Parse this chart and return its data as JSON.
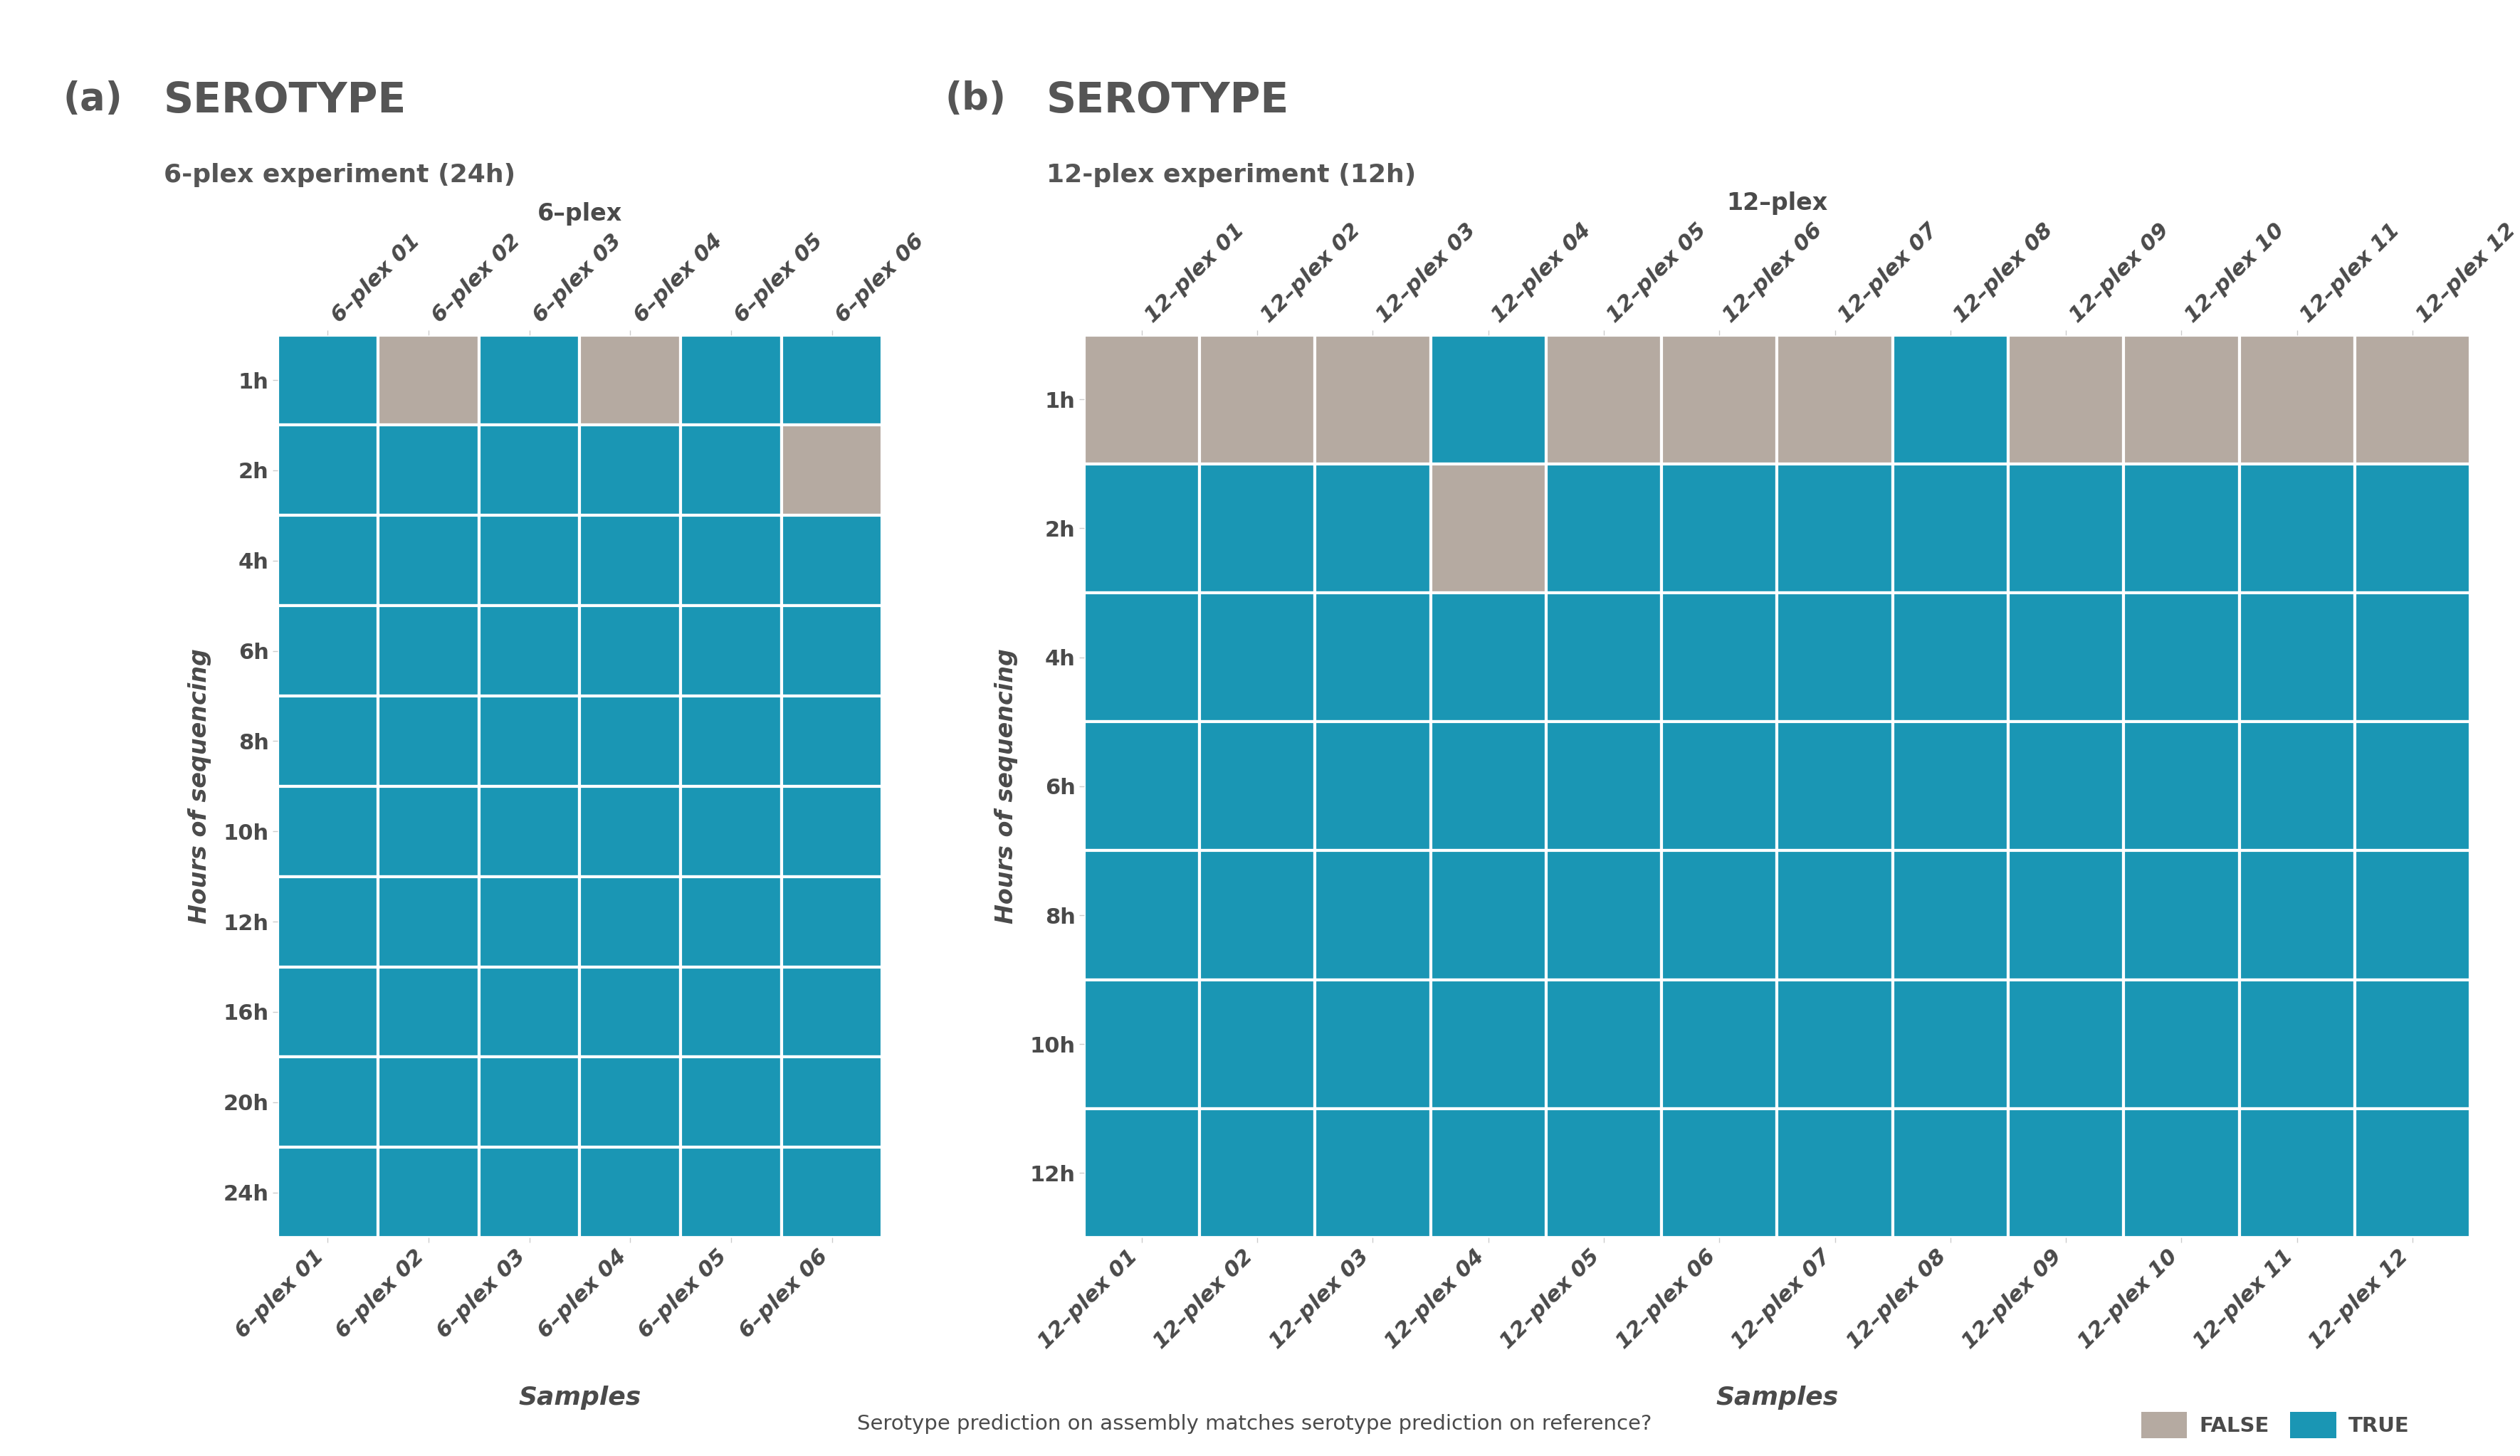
{
  "panel_a": {
    "title": "SEROTYPE",
    "subtitle": "6-plex experiment (24h)",
    "x_title": "6–plex",
    "samples": [
      "6–plex 01",
      "6–plex 02",
      "6–plex 03",
      "6–plex 04",
      "6–plex 05",
      "6–plex 06"
    ],
    "timepoints": [
      "1h",
      "2h",
      "4h",
      "6h",
      "8h",
      "10h",
      "12h",
      "16h",
      "20h",
      "24h"
    ],
    "data": [
      [
        1,
        0,
        1,
        0,
        1,
        1
      ],
      [
        1,
        1,
        1,
        1,
        1,
        0
      ],
      [
        1,
        1,
        1,
        1,
        1,
        1
      ],
      [
        1,
        1,
        1,
        1,
        1,
        1
      ],
      [
        1,
        1,
        1,
        1,
        1,
        1
      ],
      [
        1,
        1,
        1,
        1,
        1,
        1
      ],
      [
        1,
        1,
        1,
        1,
        1,
        1
      ],
      [
        1,
        1,
        1,
        1,
        1,
        1
      ],
      [
        1,
        1,
        1,
        1,
        1,
        1
      ],
      [
        1,
        1,
        1,
        1,
        1,
        1
      ]
    ]
  },
  "panel_b": {
    "title": "SEROTYPE",
    "subtitle": "12-plex experiment (12h)",
    "x_title": "12–plex",
    "samples": [
      "12–plex 01",
      "12–plex 02",
      "12–plex 03",
      "12–plex 04",
      "12–plex 05",
      "12–plex 06",
      "12–plex 07",
      "12–plex 08",
      "12–plex 09",
      "12–plex 10",
      "12–plex 11",
      "12–plex 12"
    ],
    "timepoints": [
      "1h",
      "2h",
      "4h",
      "6h",
      "8h",
      "10h",
      "12h"
    ],
    "data": [
      [
        0,
        0,
        0,
        1,
        0,
        0,
        0,
        1,
        0,
        0,
        0,
        0
      ],
      [
        1,
        1,
        1,
        0,
        1,
        1,
        1,
        1,
        1,
        1,
        1,
        1
      ],
      [
        1,
        1,
        1,
        1,
        1,
        1,
        1,
        1,
        1,
        1,
        1,
        1
      ],
      [
        1,
        1,
        1,
        1,
        1,
        1,
        1,
        1,
        1,
        1,
        1,
        1
      ],
      [
        1,
        1,
        1,
        1,
        1,
        1,
        1,
        1,
        1,
        1,
        1,
        1
      ],
      [
        1,
        1,
        1,
        1,
        1,
        1,
        1,
        1,
        1,
        1,
        1,
        1
      ],
      [
        1,
        1,
        1,
        1,
        1,
        1,
        1,
        1,
        1,
        1,
        1,
        1
      ]
    ]
  },
  "true_color": "#1a96b4",
  "false_color": "#b5aaa1",
  "background_color": "#ffffff",
  "grid_color": "#ffffff",
  "text_color": "#4a4a4a",
  "panel_label_color": "#555555",
  "title_fontsize": 42,
  "subtitle_fontsize": 26,
  "xtitle_fontsize": 24,
  "tick_fontsize": 22,
  "ylabel_fontsize": 24,
  "samples_label_fontsize": 26,
  "legend_fontsize": 21,
  "legend_question": "Serotype prediction on assembly matches serotype prediction on reference?",
  "legend_false": "FALSE",
  "legend_true": "TRUE"
}
